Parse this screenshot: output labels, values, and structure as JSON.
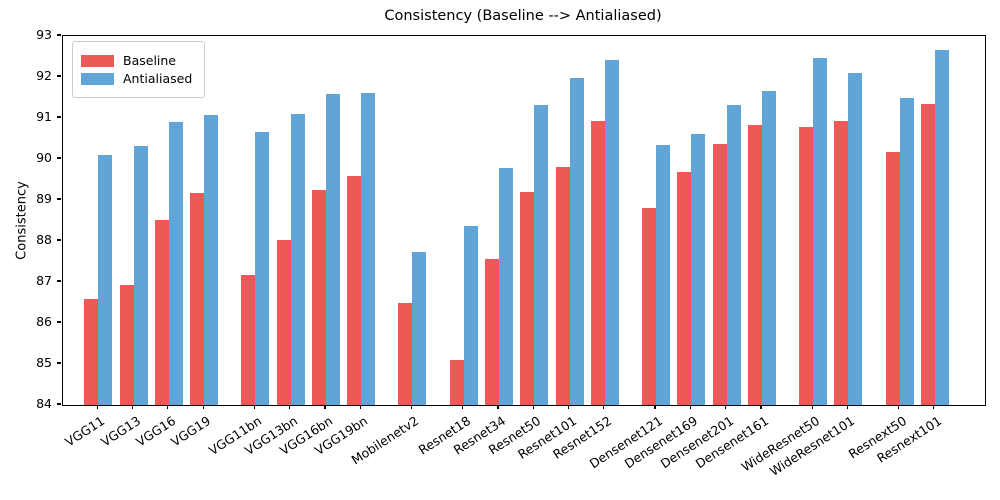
{
  "chart_data": {
    "type": "bar",
    "title": "Consistency (Baseline --> Antialiased)",
    "xlabel": "",
    "ylabel": "Consistency",
    "ylim": [
      84,
      93
    ],
    "yticks": [
      84,
      85,
      86,
      87,
      88,
      89,
      90,
      91,
      92,
      93
    ],
    "grid": false,
    "legend_position": "upper left",
    "categories": [
      "VGG11",
      "VGG13",
      "VGG16",
      "VGG19",
      "VGG11bn",
      "VGG13bn",
      "VGG16bn",
      "VGG19bn",
      "Mobilenetv2",
      "Resnet18",
      "Resnet34",
      "Resnet50",
      "Resnet101",
      "Resnet152",
      "Densenet121",
      "Densenet169",
      "Densenet201",
      "Densenet161",
      "WideResnet50",
      "WideResnet101",
      "Resnext50",
      "Resnext101"
    ],
    "positions": [
      0,
      1,
      2,
      3,
      4.45,
      5.45,
      6.45,
      7.45,
      8.9,
      10.35,
      11.35,
      12.35,
      13.35,
      14.35,
      15.8,
      16.8,
      17.8,
      18.8,
      20.25,
      21.25,
      22.7,
      23.7
    ],
    "series": [
      {
        "name": "Baseline",
        "color": "#ee5856",
        "values": [
          86.58,
          86.92,
          88.52,
          89.17,
          87.16,
          88.03,
          89.24,
          89.59,
          86.5,
          85.11,
          87.56,
          89.2,
          89.81,
          90.92,
          88.81,
          89.68,
          90.36,
          90.82,
          90.77,
          90.93,
          90.17,
          91.33
        ]
      },
      {
        "name": "Antialiased",
        "color": "#61a4d8",
        "values": [
          90.09,
          90.31,
          90.91,
          91.08,
          90.67,
          91.1,
          91.58,
          91.6,
          87.73,
          88.36,
          89.77,
          91.32,
          91.97,
          92.42,
          90.35,
          90.61,
          91.32,
          91.66,
          92.46,
          92.1,
          91.48,
          92.67
        ]
      }
    ]
  }
}
